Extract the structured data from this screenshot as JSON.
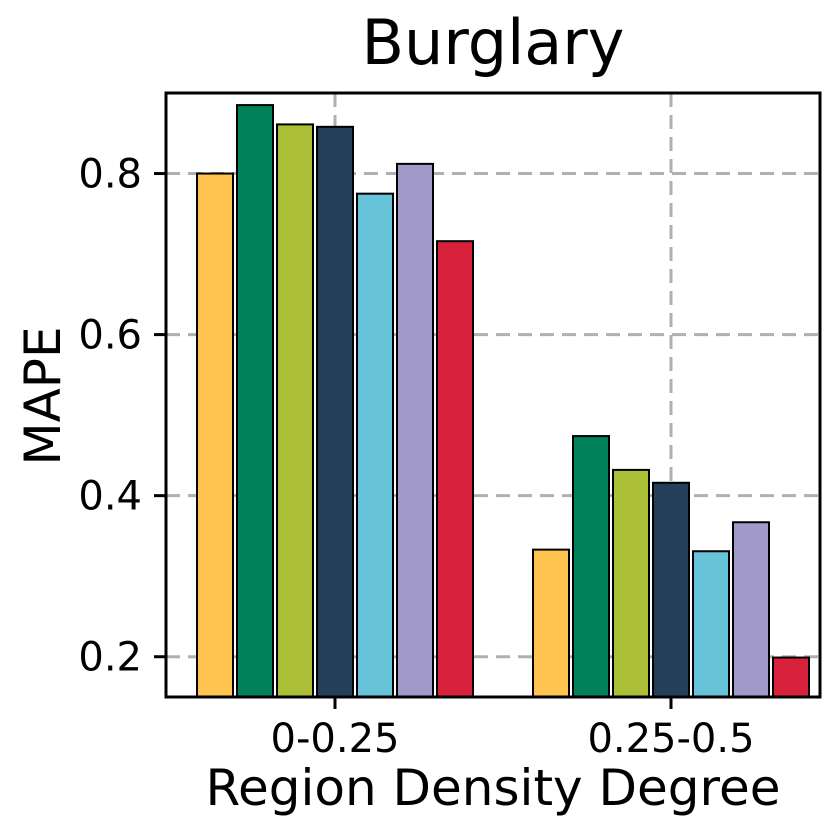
{
  "chart_data": {
    "type": "bar",
    "title": "Burglary",
    "xlabel": "Region Density Degree",
    "ylabel": "MAPE",
    "categories": [
      "0-0.25",
      "0.25-0.5"
    ],
    "yticks": [
      "0.2",
      "0.4",
      "0.6",
      "0.8"
    ],
    "ylim": [
      0.15,
      0.9
    ],
    "grid": true,
    "series": [
      {
        "color": "#fec44f",
        "values": [
          0.8,
          0.333
        ]
      },
      {
        "color": "#018159",
        "values": [
          0.885,
          0.474
        ]
      },
      {
        "color": "#abc037",
        "values": [
          0.861,
          0.432
        ]
      },
      {
        "color": "#253f5a",
        "values": [
          0.858,
          0.416
        ]
      },
      {
        "color": "#67c3d9",
        "values": [
          0.775,
          0.331
        ]
      },
      {
        "color": "#a19ac8",
        "values": [
          0.812,
          0.367
        ]
      },
      {
        "color": "#d8213a",
        "values": [
          0.716,
          0.199
        ]
      }
    ]
  }
}
